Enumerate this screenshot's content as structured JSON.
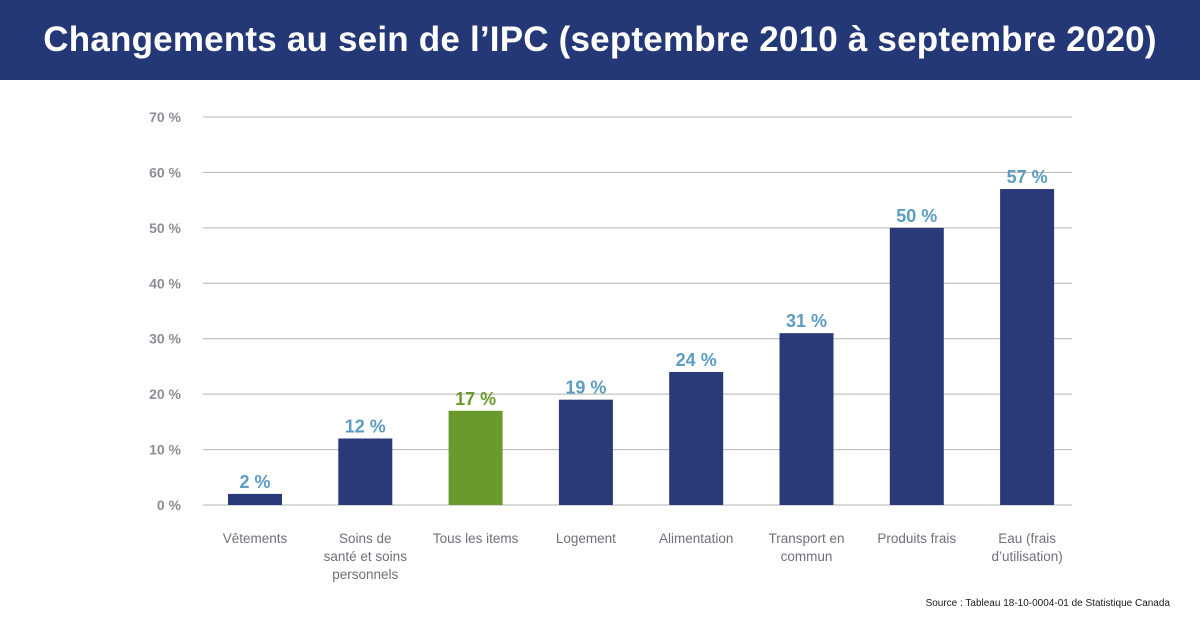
{
  "header": {
    "title": "Changements au sein de l’IPC (septembre 2010 à septembre 2020)"
  },
  "source": "Source : Tableau 18-10-0004-01 de Statistique Canada",
  "colors": {
    "header_bg": "#243776",
    "bar": "#2a3978",
    "highlight_bar": "#6a9a2e",
    "value_label": "#5b9cc1",
    "highlight_label": "#6a9a2e",
    "axis_text": "#8a8f95",
    "category_text": "#6d7177",
    "grid": "#b3b3b3"
  },
  "chart_data": {
    "type": "bar",
    "categories": [
      [
        "Vêtements"
      ],
      [
        "Soins de",
        "santé et soins",
        "personnels"
      ],
      [
        "Tous les items"
      ],
      [
        "Logement"
      ],
      [
        "Alimentation"
      ],
      [
        "Transport en",
        "commun"
      ],
      [
        "Produits frais"
      ],
      [
        "Eau (frais",
        "d’utilisation)"
      ]
    ],
    "values": [
      2,
      12,
      17,
      19,
      24,
      31,
      50,
      57
    ],
    "value_labels": [
      "2 %",
      "12 %",
      "17 %",
      "19 %",
      "24 %",
      "31 %",
      "50 %",
      "57 %"
    ],
    "highlight_index": 2,
    "ylim": [
      0,
      70
    ],
    "yticks": [
      0,
      10,
      20,
      30,
      40,
      50,
      60,
      70
    ],
    "ytick_labels": [
      "0 %",
      "10 %",
      "20 %",
      "30 %",
      "40 %",
      "50 %",
      "60 %",
      "70 %"
    ],
    "grid": true,
    "title": "",
    "xlabel": "",
    "ylabel": ""
  }
}
